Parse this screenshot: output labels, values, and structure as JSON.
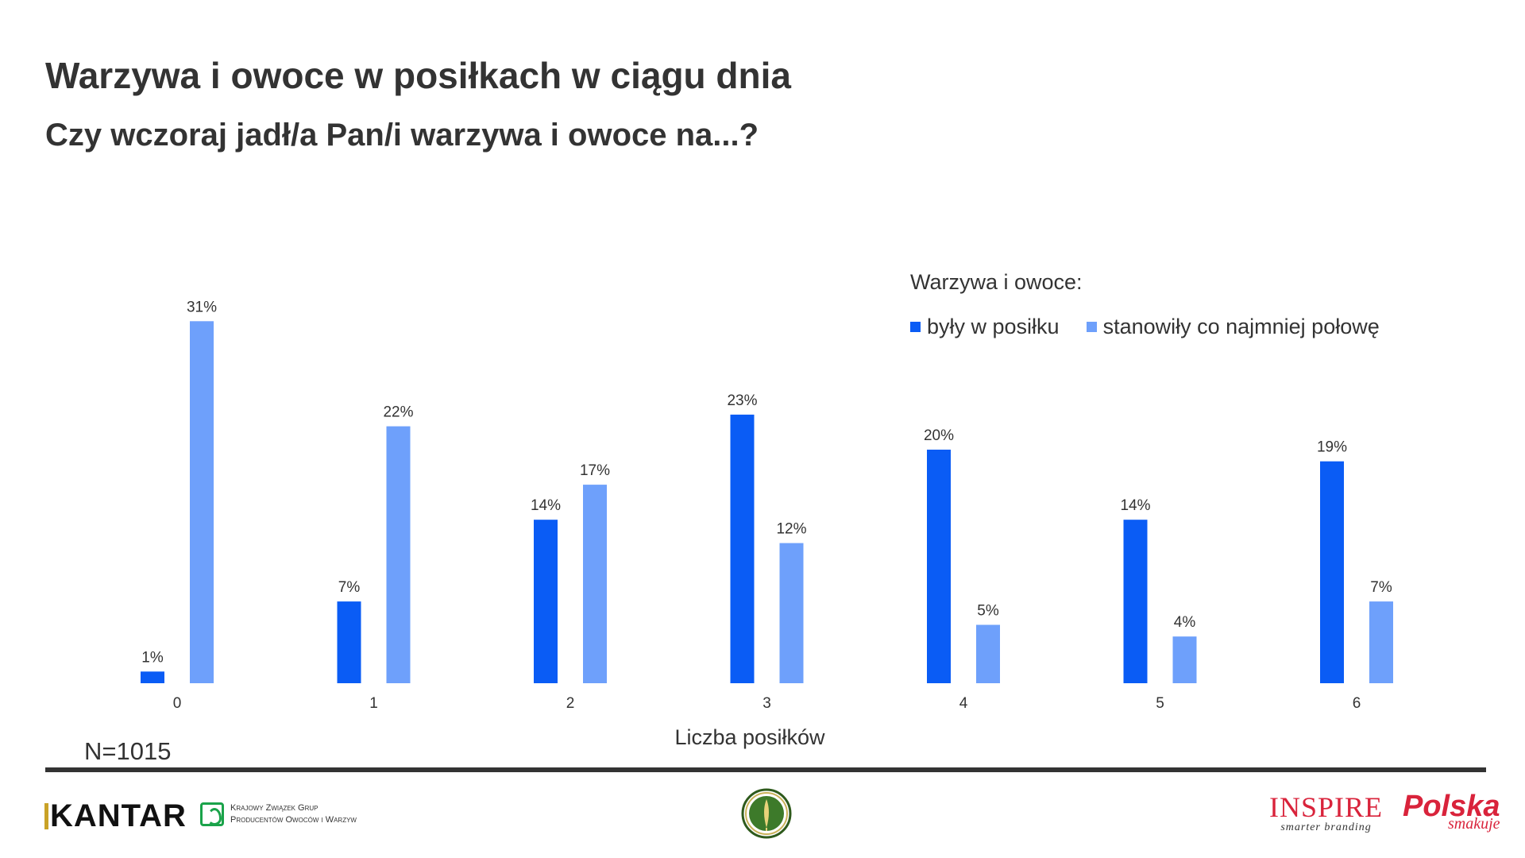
{
  "header": {
    "title": "Warzywa i owoce w posiłkach w ciągu dnia",
    "subtitle": "Czy wczoraj jadł/a Pan/i warzywa i owoce na...?"
  },
  "legend": {
    "title": "Warzywa i owoce:",
    "placement": "top-right"
  },
  "sample_note": "N=1015",
  "footer": {
    "kantar": "KANTAR",
    "kzgpow_line1": "Krajowy Związek Grup",
    "kzgpow_line2": "Producentów Owoców i Warzyw",
    "inspire": "INSPIRE",
    "inspire_tagline": "smarter branding",
    "polska": "Polska",
    "polska_tagline": "smakuje"
  },
  "colors": {
    "series_dark": "#0a5cf5",
    "series_light": "#6ea0fb",
    "text": "#333333"
  },
  "chart_data": {
    "type": "bar",
    "categories": [
      "0",
      "1",
      "2",
      "3",
      "4",
      "5",
      "6"
    ],
    "xlabel": "Liczba posiłków",
    "ylabel": "",
    "ylim": [
      0,
      35
    ],
    "grid": false,
    "series": [
      {
        "name": "były w posiłku",
        "values": [
          1,
          7,
          14,
          23,
          20,
          14,
          19
        ],
        "labels": [
          "1%",
          "7%",
          "14%",
          "23%",
          "20%",
          "14%",
          "19%"
        ],
        "color": "#0a5cf5"
      },
      {
        "name": "stanowiły co najmniej połowę",
        "values": [
          31,
          22,
          17,
          12,
          5,
          4,
          7
        ],
        "labels": [
          "31%",
          "22%",
          "17%",
          "12%",
          "5%",
          "4%",
          "7%"
        ],
        "color": "#6ea0fb"
      }
    ]
  }
}
